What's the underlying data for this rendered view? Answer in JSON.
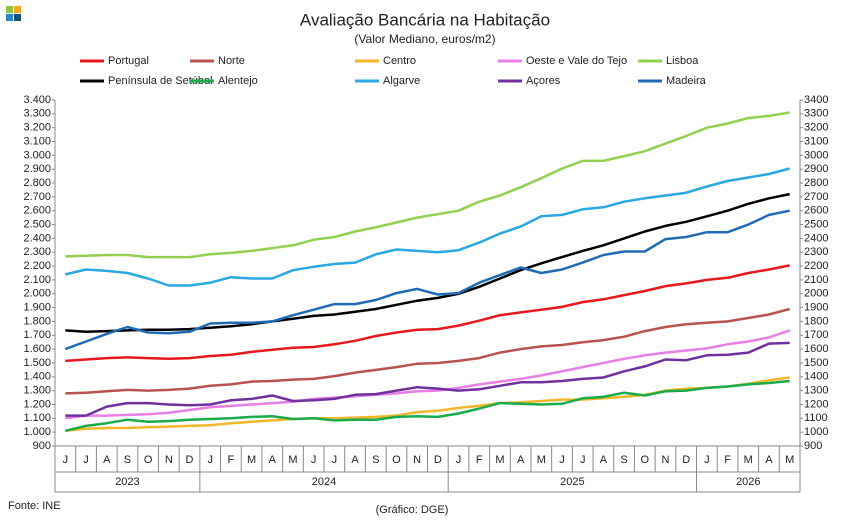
{
  "chart_data": {
    "type": "line",
    "title": "Avaliação Bancária na Habitação",
    "subtitle": "(Valor Mediano, euros/m2)",
    "source": "Fonte: INE",
    "credit": "(Gráfico: DGE)",
    "categories": [
      "J",
      "J",
      "A",
      "S",
      "O",
      "N",
      "D",
      "J",
      "F",
      "M",
      "A",
      "M",
      "J",
      "J",
      "A",
      "S",
      "O",
      "N",
      "D",
      "J",
      "F",
      "M",
      "A",
      "M",
      "J",
      "J",
      "A",
      "S",
      "O",
      "N",
      "D",
      "J",
      "F",
      "M",
      "A",
      "M"
    ],
    "years": [
      "2023",
      "2024",
      "2025",
      "2026"
    ],
    "ylim": [
      900,
      3400
    ],
    "yticks": [
      {
        "value": 900,
        "label": "900"
      },
      {
        "value": 1000,
        "label": "1.000"
      },
      {
        "value": 1100,
        "label": "1.100"
      },
      {
        "value": 1200,
        "label": "1.200"
      },
      {
        "value": 1300,
        "label": "1.300"
      },
      {
        "value": 1400,
        "label": "1.400"
      },
      {
        "value": 1500,
        "label": "1.500"
      },
      {
        "value": 1600,
        "label": "1.600"
      },
      {
        "value": 1700,
        "label": "1.700"
      },
      {
        "value": 1800,
        "label": "1.800"
      },
      {
        "value": 1900,
        "label": "1.900"
      },
      {
        "value": 2000,
        "label": "2.000"
      },
      {
        "value": 2100,
        "label": "2.100"
      },
      {
        "value": 2200,
        "label": "2.200"
      },
      {
        "value": 2300,
        "label": "2.300"
      },
      {
        "value": 2400,
        "label": "2.400"
      },
      {
        "value": 2500,
        "label": "2.500"
      },
      {
        "value": 2600,
        "label": "2.600"
      },
      {
        "value": 2700,
        "label": "2.700"
      },
      {
        "value": 2800,
        "label": "2.800"
      },
      {
        "value": 2900,
        "label": "2.900"
      },
      {
        "value": 3000,
        "label": "3.000"
      },
      {
        "value": 3100,
        "label": "3.100"
      },
      {
        "value": 3200,
        "label": "3.200"
      },
      {
        "value": 3300,
        "label": "3.300"
      },
      {
        "value": 3400,
        "label": "3.400"
      }
    ],
    "y2lim": [
      900,
      3400
    ],
    "y2ticks": [
      900,
      1000,
      1100,
      1200,
      1300,
      1400,
      1500,
      1600,
      1700,
      1800,
      1900,
      2000,
      2100,
      2200,
      2300,
      2400,
      2500,
      2600,
      2700,
      2800,
      2900,
      3000,
      3100,
      3200,
      3300,
      3400
    ],
    "grid": false,
    "series": [
      {
        "name": "Portugal",
        "color": "#e8191d",
        "values": [
          1515,
          1525,
          1535,
          1540,
          1535,
          1530,
          1535,
          1550,
          1560,
          1580,
          1595,
          1610,
          1615,
          1635,
          1660,
          1695,
          1720,
          1740,
          1745,
          1770,
          1805,
          1845,
          1865,
          1885,
          1905,
          1940,
          1960,
          1990,
          2020,
          2055,
          2075,
          2100,
          2115,
          2150,
          2175,
          2205
        ]
      },
      {
        "name": "Norte",
        "color": "#b85450",
        "values": [
          1280,
          1285,
          1295,
          1305,
          1300,
          1305,
          1315,
          1335,
          1345,
          1365,
          1370,
          1380,
          1385,
          1405,
          1430,
          1450,
          1470,
          1495,
          1500,
          1515,
          1535,
          1575,
          1600,
          1620,
          1630,
          1650,
          1665,
          1690,
          1730,
          1760,
          1780,
          1790,
          1800,
          1825,
          1850,
          1890
        ]
      },
      {
        "name": "Centro",
        "color": "#f2b62b",
        "values": [
          1010,
          1025,
          1030,
          1030,
          1035,
          1040,
          1045,
          1050,
          1065,
          1075,
          1085,
          1095,
          1100,
          1100,
          1105,
          1110,
          1120,
          1145,
          1155,
          1175,
          1190,
          1210,
          1215,
          1225,
          1235,
          1235,
          1245,
          1255,
          1270,
          1300,
          1315,
          1320,
          1330,
          1350,
          1375,
          1395
        ]
      },
      {
        "name": "Oeste e Vale do Tejo",
        "color": "#e97ee6",
        "values": [
          1100,
          1120,
          1120,
          1125,
          1130,
          1140,
          1160,
          1180,
          1190,
          1200,
          1210,
          1220,
          1240,
          1250,
          1260,
          1270,
          1280,
          1295,
          1300,
          1320,
          1345,
          1365,
          1385,
          1410,
          1440,
          1470,
          1500,
          1530,
          1555,
          1575,
          1590,
          1605,
          1635,
          1655,
          1685,
          1735
        ]
      },
      {
        "name": "Lisboa",
        "color": "#92d050",
        "values": [
          2270,
          2275,
          2280,
          2280,
          2265,
          2265,
          2265,
          2285,
          2295,
          2310,
          2330,
          2350,
          2390,
          2410,
          2450,
          2480,
          2515,
          2550,
          2575,
          2600,
          2665,
          2710,
          2770,
          2835,
          2905,
          2960,
          2960,
          2995,
          3030,
          3085,
          3140,
          3200,
          3230,
          3270,
          3285,
          3310
        ]
      },
      {
        "name": "Península de Setúbal",
        "color": "#000000",
        "values": [
          1735,
          1725,
          1730,
          1735,
          1740,
          1740,
          1745,
          1755,
          1765,
          1780,
          1800,
          1820,
          1840,
          1850,
          1870,
          1890,
          1920,
          1950,
          1970,
          2000,
          2050,
          2110,
          2170,
          2220,
          2265,
          2310,
          2350,
          2400,
          2450,
          2490,
          2520,
          2560,
          2600,
          2650,
          2690,
          2720
        ]
      },
      {
        "name": "Alentejo",
        "color": "#1aab4d",
        "values": [
          1010,
          1045,
          1065,
          1090,
          1075,
          1080,
          1090,
          1095,
          1100,
          1110,
          1115,
          1095,
          1100,
          1085,
          1090,
          1090,
          1110,
          1115,
          1110,
          1135,
          1170,
          1210,
          1205,
          1200,
          1205,
          1245,
          1255,
          1285,
          1265,
          1295,
          1300,
          1320,
          1330,
          1345,
          1355,
          1370
        ]
      },
      {
        "name": "Algarve",
        "color": "#2aa8e0",
        "values": [
          2140,
          2175,
          2165,
          2150,
          2110,
          2060,
          2060,
          2080,
          2120,
          2110,
          2110,
          2170,
          2195,
          2215,
          2225,
          2285,
          2320,
          2310,
          2300,
          2315,
          2370,
          2435,
          2485,
          2560,
          2570,
          2610,
          2625,
          2665,
          2690,
          2710,
          2730,
          2775,
          2815,
          2840,
          2865,
          2905
        ]
      },
      {
        "name": "Açores",
        "color": "#7030a0",
        "values": [
          1120,
          1120,
          1185,
          1210,
          1210,
          1200,
          1195,
          1200,
          1230,
          1240,
          1265,
          1225,
          1230,
          1240,
          1270,
          1275,
          1300,
          1325,
          1315,
          1300,
          1310,
          1335,
          1360,
          1360,
          1370,
          1385,
          1395,
          1440,
          1475,
          1525,
          1520,
          1555,
          1560,
          1575,
          1640,
          1645
        ]
      },
      {
        "name": "Madeira",
        "color": "#1f6bb4",
        "values": [
          1600,
          1655,
          1710,
          1760,
          1720,
          1715,
          1725,
          1785,
          1790,
          1790,
          1800,
          1845,
          1885,
          1925,
          1925,
          1955,
          2005,
          2035,
          1995,
          2005,
          2080,
          2135,
          2190,
          2150,
          2175,
          2225,
          2280,
          2305,
          2305,
          2395,
          2410,
          2445,
          2445,
          2500,
          2570,
          2600
        ]
      }
    ]
  }
}
